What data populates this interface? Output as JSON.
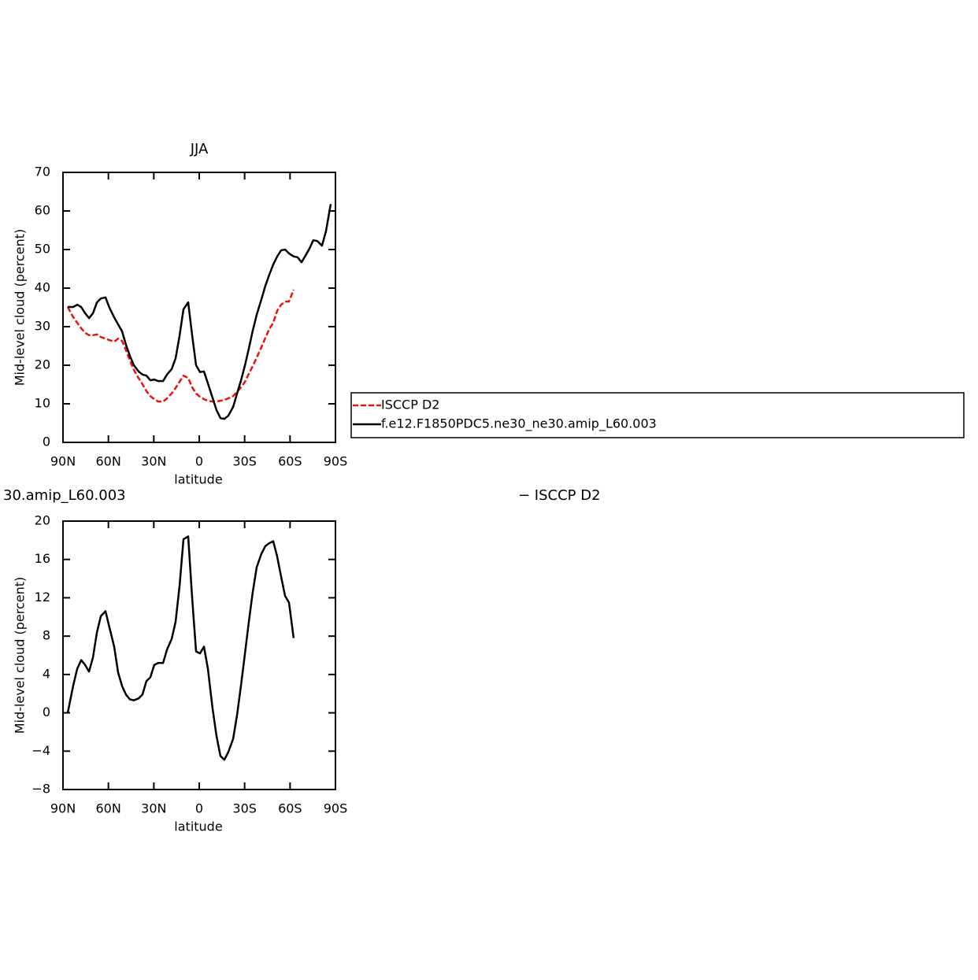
{
  "chart_data": [
    {
      "type": "line",
      "title": "JJA",
      "x_label": "latitude",
      "y_label": "Mid-level cloud (percent)",
      "xlim": [
        90,
        -90
      ],
      "xticks": [
        {
          "value": 90,
          "label": "90N"
        },
        {
          "value": 60,
          "label": "60N"
        },
        {
          "value": 30,
          "label": "30N"
        },
        0,
        {
          "value": -30,
          "label": "30S"
        },
        {
          "value": -60,
          "label": "60S"
        },
        {
          "value": -90,
          "label": "90S"
        }
      ],
      "ylim": [
        0,
        70
      ],
      "yticks": [
        0,
        10,
        20,
        30,
        40,
        50,
        60,
        70
      ],
      "legend": "right",
      "x": [
        86.9,
        83.2,
        80.6,
        78.0,
        75.4,
        72.8,
        70.2,
        67.6,
        65.0,
        61.9,
        59.3,
        56.2,
        53.6,
        51.0,
        48.4,
        45.8,
        43.2,
        40.1,
        37.5,
        34.9,
        32.3,
        29.7,
        27.1,
        23.9,
        21.3,
        18.2,
        15.6,
        13.0,
        10.4,
        7.3,
        4.7,
        2.1,
        -0.5,
        -3.1,
        -5.7,
        -8.8,
        -11.4,
        -14.0,
        -16.6,
        -19.2,
        -22.4,
        -25.0,
        -27.6,
        -30.2,
        -32.8,
        -35.4,
        -38.0,
        -41.1,
        -43.7,
        -46.3,
        -48.9,
        -51.5,
        -54.1,
        -56.7,
        -59.3,
        -62.4,
        -65.0,
        -67.6,
        -70.2,
        -72.8,
        -75.4,
        -78.0,
        -81.1,
        -83.7,
        -86.9
      ],
      "series": [
        {
          "name": "ISCCP D2",
          "color": "#e8130e",
          "dashed": true,
          "values": [
            35.1,
            32.4,
            31.0,
            29.6,
            28.4,
            27.8,
            27.8,
            28.0,
            27.3,
            26.9,
            26.5,
            26.1,
            26.9,
            26.3,
            23.9,
            21.2,
            18.8,
            16.7,
            15.1,
            13.3,
            12.0,
            11.2,
            10.6,
            10.6,
            11.4,
            12.7,
            14.1,
            15.7,
            17.3,
            16.7,
            14.3,
            12.7,
            11.8,
            11.2,
            10.8,
            10.6,
            10.6,
            10.8,
            11.0,
            11.4,
            12.0,
            13.1,
            14.3,
            15.7,
            17.8,
            19.8,
            22.0,
            24.7,
            27.1,
            29.4,
            31.0,
            34.1,
            35.7,
            36.5,
            36.5,
            39.6,
            null,
            null,
            null,
            null,
            null,
            null,
            null,
            null,
            null
          ]
        },
        {
          "name": "f.e12.F1850PDC5.ne30_ne30.amip_L60.003",
          "color": "#000000",
          "dashed": false,
          "values": [
            35.1,
            35.1,
            35.7,
            35.1,
            33.5,
            32.2,
            33.5,
            36.3,
            37.3,
            37.6,
            34.9,
            32.4,
            30.6,
            28.8,
            25.3,
            22.4,
            20.0,
            18.4,
            17.6,
            17.3,
            16.1,
            16.3,
            15.9,
            15.9,
            17.6,
            19.0,
            21.8,
            27.6,
            34.5,
            36.3,
            27.8,
            20.0,
            18.2,
            18.4,
            15.3,
            11.6,
            8.4,
            6.3,
            6.1,
            6.9,
            9.2,
            12.7,
            16.1,
            20.0,
            24.3,
            29.0,
            33.1,
            37.1,
            40.6,
            43.5,
            46.1,
            48.2,
            49.8,
            50.0,
            49.0,
            48.2,
            48.0,
            46.7,
            48.4,
            50.2,
            52.4,
            52.2,
            51.0,
            54.7,
            61.8
          ]
        }
      ]
    },
    {
      "type": "line",
      "title": "30.amip_L60.003",
      "subtitle": "− ISCCP D2",
      "x_label": "latitude",
      "y_label": "Mid-level cloud (percent)",
      "xlim": [
        90,
        -90
      ],
      "xticks": [
        {
          "value": 90,
          "label": "90N"
        },
        {
          "value": 60,
          "label": "60N"
        },
        {
          "value": 30,
          "label": "30N"
        },
        0,
        {
          "value": -30,
          "label": "30S"
        },
        {
          "value": -60,
          "label": "60S"
        },
        {
          "value": -90,
          "label": "90S"
        }
      ],
      "ylim": [
        -8,
        20
      ],
      "yticks": [
        {
          "value": -8,
          "label": "−8"
        },
        {
          "value": -4,
          "label": "−4"
        },
        0,
        4,
        8,
        12,
        16,
        20
      ],
      "x": [
        86.9,
        83.2,
        80.6,
        78.0,
        75.4,
        72.8,
        70.2,
        67.6,
        65.0,
        61.9,
        59.3,
        56.2,
        53.6,
        51.0,
        48.4,
        45.8,
        43.2,
        40.1,
        37.5,
        34.9,
        32.3,
        29.7,
        27.1,
        23.9,
        21.3,
        18.2,
        15.6,
        13.0,
        10.4,
        7.3,
        4.7,
        2.1,
        -0.5,
        -3.1,
        -5.7,
        -8.8,
        -11.4,
        -14.0,
        -16.6,
        -19.2,
        -22.4,
        -25.0,
        -27.6,
        -30.2,
        -32.8,
        -35.4,
        -38.0,
        -41.1,
        -43.7,
        -46.3,
        -48.9,
        -51.5,
        -54.1,
        -56.7,
        -59.3,
        -62.4
      ],
      "series": [
        {
          "color": "#000000",
          "dashed": false,
          "values": [
            0.0,
            2.9,
            4.6,
            5.5,
            5.0,
            4.3,
            5.8,
            8.4,
            10.1,
            10.6,
            8.9,
            6.9,
            4.2,
            2.8,
            1.9,
            1.4,
            1.3,
            1.5,
            1.9,
            3.3,
            3.7,
            5.0,
            5.2,
            5.2,
            6.6,
            7.7,
            9.5,
            13.2,
            18.1,
            18.4,
            12.0,
            6.4,
            6.2,
            6.9,
            4.6,
            0.5,
            -2.4,
            -4.5,
            -4.9,
            -4.1,
            -2.7,
            -0.2,
            2.9,
            6.2,
            9.5,
            12.6,
            15.2,
            16.6,
            17.4,
            17.7,
            17.9,
            16.3,
            14.2,
            12.2,
            11.5,
            7.8
          ]
        }
      ]
    }
  ]
}
